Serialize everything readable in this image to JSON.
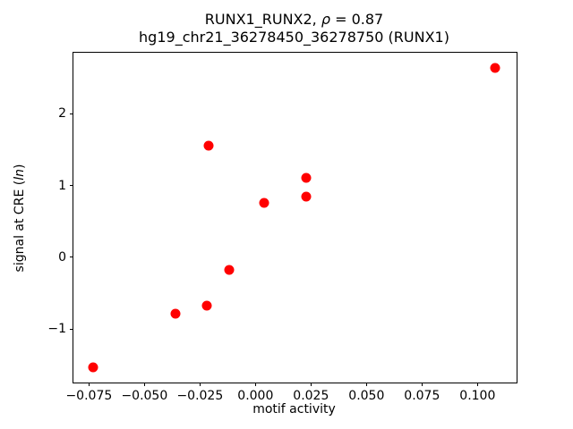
{
  "chart_data": {
    "type": "scatter",
    "title_parts": [
      "RUNX1_RUNX2, ",
      "ρ",
      " = 0.87"
    ],
    "title_line2": "hg19_chr21_36278450_36278750 (RUNX1)",
    "xlabel": "motif activity",
    "ylabel_parts": [
      "signal at CRE (",
      "ln",
      ")"
    ],
    "marker_color": "#ff0000",
    "marker_size_px": 11,
    "axis_color": "#000000",
    "background_color": "#ffffff",
    "grid": false,
    "legend": null,
    "xlim": [
      -0.082,
      0.1176
    ],
    "ylim": [
      -1.742,
      2.848
    ],
    "xticks": {
      "values": [
        -0.075,
        -0.05,
        -0.025,
        0.0,
        0.025,
        0.05,
        0.075,
        0.1
      ],
      "labels": [
        "−0.075",
        "−0.050",
        "−0.025",
        "0.000",
        "0.025",
        "0.050",
        "0.075",
        "0.100"
      ]
    },
    "yticks": {
      "values": [
        -1,
        0,
        1,
        2
      ],
      "labels": [
        "−1",
        "0",
        "1",
        "2"
      ]
    },
    "points": [
      {
        "x": -0.073,
        "y": -1.53
      },
      {
        "x": -0.036,
        "y": -0.79
      },
      {
        "x": -0.022,
        "y": -0.67
      },
      {
        "x": -0.021,
        "y": 1.55
      },
      {
        "x": -0.012,
        "y": -0.18
      },
      {
        "x": 0.004,
        "y": 0.76
      },
      {
        "x": 0.023,
        "y": 0.85
      },
      {
        "x": 0.023,
        "y": 1.11
      },
      {
        "x": 0.108,
        "y": 2.64
      }
    ]
  }
}
